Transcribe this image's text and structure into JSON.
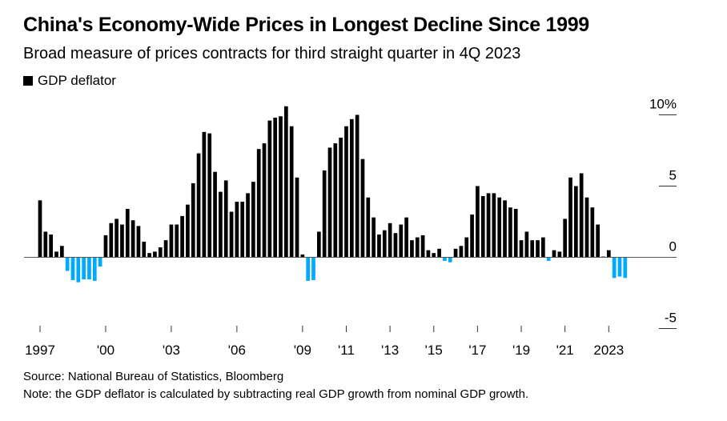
{
  "title": "China's Economy-Wide Prices in Longest Decline Since 1999",
  "subtitle": "Broad measure of prices contracts for third straight quarter in 4Q 2023",
  "legend": [
    {
      "label": "GDP deflator",
      "color": "#000000"
    }
  ],
  "source": "Source: National Bureau of Statistics, Bloomberg",
  "note": "Note: the GDP deflator is calculated by subtracting real GDP growth from nominal GDP growth.",
  "colors": {
    "positive": "#000000",
    "negative": "#00aaff",
    "axis": "#555555"
  },
  "chart_data": {
    "type": "bar",
    "frequency": "quarterly",
    "start": "1997 Q1",
    "end": "2023 Q4",
    "ylim": [
      -5,
      10
    ],
    "yticks": [
      {
        "value": 10,
        "label": "10%"
      },
      {
        "value": 5,
        "label": "5"
      },
      {
        "value": 0,
        "label": "0"
      },
      {
        "value": -5,
        "label": "-5"
      }
    ],
    "xticks": [
      {
        "year": 1997,
        "label": "1997"
      },
      {
        "year": 2000,
        "label": "'00"
      },
      {
        "year": 2003,
        "label": "'03"
      },
      {
        "year": 2006,
        "label": "'06"
      },
      {
        "year": 2009,
        "label": "'09"
      },
      {
        "year": 2011,
        "label": "'11"
      },
      {
        "year": 2013,
        "label": "'13"
      },
      {
        "year": 2015,
        "label": "'15"
      },
      {
        "year": 2017,
        "label": "'17"
      },
      {
        "year": 2019,
        "label": "'19"
      },
      {
        "year": 2021,
        "label": "'21"
      },
      {
        "year": 2023,
        "label": "2023"
      }
    ],
    "series": [
      {
        "name": "GDP deflator",
        "values": [
          4.0,
          1.8,
          1.6,
          0.4,
          0.8,
          -0.95,
          -1.6,
          -1.75,
          -1.55,
          -1.55,
          -1.65,
          -0.65,
          1.55,
          2.4,
          2.7,
          2.3,
          3.4,
          2.6,
          2.2,
          1.1,
          0.3,
          0.4,
          0.7,
          1.2,
          2.3,
          2.3,
          2.9,
          3.7,
          5.2,
          7.3,
          8.8,
          8.7,
          6.0,
          4.6,
          5.4,
          3.2,
          3.9,
          3.9,
          4.5,
          5.3,
          7.6,
          8.0,
          9.6,
          9.8,
          9.9,
          10.6,
          9.2,
          5.6,
          0.2,
          -1.65,
          -1.6,
          1.8,
          6.1,
          7.7,
          8.0,
          8.4,
          9.2,
          9.7,
          10.0,
          6.9,
          4.2,
          2.8,
          1.6,
          1.9,
          2.4,
          1.7,
          2.3,
          2.8,
          1.2,
          1.4,
          1.55,
          0.5,
          0.3,
          0.6,
          -0.25,
          -0.35,
          0.6,
          0.8,
          1.4,
          3.0,
          5.0,
          4.3,
          4.5,
          4.5,
          4.2,
          4.0,
          3.5,
          3.4,
          1.2,
          1.8,
          1.2,
          1.2,
          1.4,
          -0.25,
          0.5,
          0.4,
          2.7,
          5.6,
          5.0,
          5.9,
          4.2,
          3.5,
          2.3,
          0.05,
          0.5,
          -1.45,
          -1.35,
          -1.45
        ]
      }
    ]
  }
}
